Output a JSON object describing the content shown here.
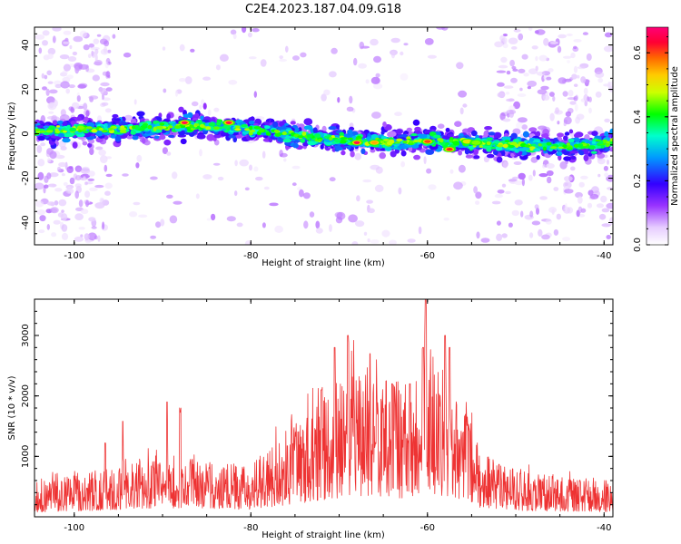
{
  "title": "C2E4.2023.187.04.09.G18",
  "chart_data": [
    {
      "type": "heatmap",
      "xlabel": "Height of straight line (km)",
      "ylabel": "Frequency (Hz)",
      "xlim": [
        -104.5,
        -39
      ],
      "ylim": [
        -50,
        48
      ],
      "xticks": [
        -100,
        -80,
        -60,
        -40
      ],
      "yticks": [
        -40,
        -20,
        0,
        20,
        40
      ],
      "colorbar": {
        "label": "Normalized spectral amplitude",
        "range": [
          0,
          0.68
        ],
        "ticks": [
          0.0,
          0.2,
          0.4,
          0.6
        ],
        "tick_labels": [
          "0.0",
          "0.2",
          "0.4",
          "0.6"
        ]
      },
      "band_center_hz": [
        {
          "x": -104,
          "y": 1
        },
        {
          "x": -90,
          "y": 3
        },
        {
          "x": -85,
          "y": 3.5
        },
        {
          "x": -80,
          "y": 2
        },
        {
          "x": -72,
          "y": -2
        },
        {
          "x": -68,
          "y": -3
        },
        {
          "x": -64,
          "y": -4
        },
        {
          "x": -60,
          "y": -3
        },
        {
          "x": -56,
          "y": -4
        },
        {
          "x": -50,
          "y": -5
        },
        {
          "x": -45,
          "y": -6
        },
        {
          "x": -39,
          "y": -4
        }
      ],
      "peaks": [
        {
          "x": -87.5,
          "y": 5,
          "value": 0.68
        },
        {
          "x": -82.5,
          "y": 5,
          "value": 0.68
        },
        {
          "x": -68,
          "y": -4,
          "value": 0.68
        },
        {
          "x": -66,
          "y": -4,
          "value": 0.55
        },
        {
          "x": -60,
          "y": -3.5,
          "value": 0.6
        },
        {
          "x": -57.5,
          "y": -7,
          "value": 0.62
        },
        {
          "x": -55.5,
          "y": -3.5,
          "value": 0.5
        },
        {
          "x": -54.5,
          "y": -4,
          "value": 0.45
        }
      ],
      "scatter_regions": [
        {
          "x": [
            -104,
            -96
          ],
          "y": [
            -48,
            46
          ]
        },
        {
          "x": [
            -52,
            -39
          ],
          "y": [
            -48,
            46
          ]
        }
      ]
    },
    {
      "type": "line",
      "xlabel": "Height of straight line (km)",
      "ylabel": "SNR (10 * v/v)",
      "xlim": [
        -104.5,
        -39
      ],
      "ylim": [
        0,
        3600
      ],
      "xticks": [
        -100,
        -80,
        -60,
        -40
      ],
      "yticks": [
        1000,
        2000,
        3000
      ],
      "color": "#ee3333",
      "envelope": [
        {
          "x": -104.5,
          "y": 500
        },
        {
          "x": -100,
          "y": 650
        },
        {
          "x": -95,
          "y": 750
        },
        {
          "x": -90,
          "y": 950
        },
        {
          "x": -85,
          "y": 850
        },
        {
          "x": -80,
          "y": 800
        },
        {
          "x": -76,
          "y": 1300
        },
        {
          "x": -72,
          "y": 1800
        },
        {
          "x": -68,
          "y": 2300
        },
        {
          "x": -65,
          "y": 2200
        },
        {
          "x": -62,
          "y": 1900
        },
        {
          "x": -60,
          "y": 2600
        },
        {
          "x": -57,
          "y": 2100
        },
        {
          "x": -54,
          "y": 1000
        },
        {
          "x": -50,
          "y": 700
        },
        {
          "x": -45,
          "y": 600
        },
        {
          "x": -39,
          "y": 550
        }
      ],
      "peaks": [
        {
          "x": -89.5,
          "y": 1900
        },
        {
          "x": -88,
          "y": 1730
        },
        {
          "x": -94.5,
          "y": 1580
        },
        {
          "x": -96.5,
          "y": 1220
        },
        {
          "x": -72,
          "y": 2100
        },
        {
          "x": -70.5,
          "y": 2800
        },
        {
          "x": -69,
          "y": 3000
        },
        {
          "x": -66.5,
          "y": 2700
        },
        {
          "x": -64,
          "y": 2200
        },
        {
          "x": -62,
          "y": 2200
        },
        {
          "x": -60.5,
          "y": 2800
        },
        {
          "x": -60.2,
          "y": 3600
        },
        {
          "x": -58,
          "y": 3000
        },
        {
          "x": -57.5,
          "y": 2800
        }
      ]
    }
  ]
}
